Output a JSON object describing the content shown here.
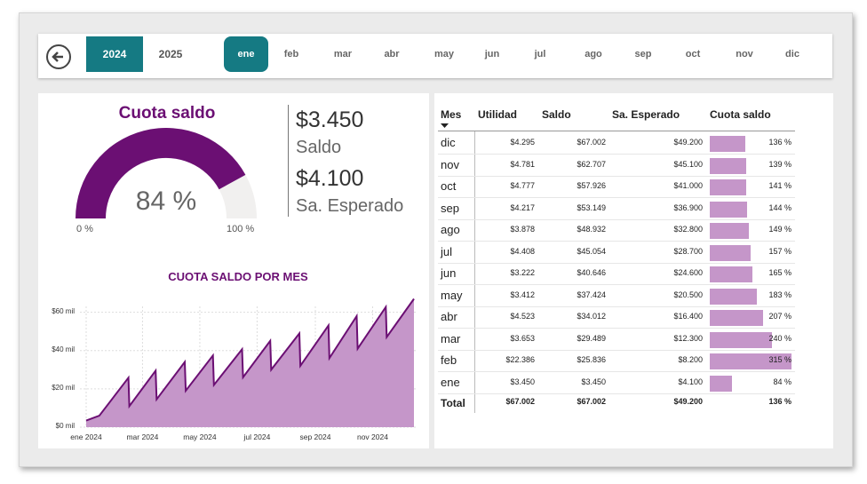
{
  "years": [
    "2024",
    "2025"
  ],
  "selected_year": "2024",
  "months": [
    "ene",
    "feb",
    "mar",
    "abr",
    "may",
    "jun",
    "jul",
    "ago",
    "sep",
    "oct",
    "nov",
    "dic"
  ],
  "selected_month": "ene",
  "gauge": {
    "title": "Cuota saldo",
    "value_label": "84 %",
    "value": 0.84,
    "min_label": "0 %",
    "max_label": "100 %"
  },
  "kpi": {
    "saldo_value": "$3.450",
    "saldo_label": "Saldo",
    "esperado_value": "$4.100",
    "esperado_label": "Sa. Esperado"
  },
  "colors": {
    "accent": "#6b0f73",
    "teal": "#157a83",
    "bar": "#c596c9"
  },
  "table": {
    "headers": [
      "Mes",
      "Utilidad",
      "Saldo",
      "Sa. Esperado",
      "Cuota saldo"
    ],
    "rows": [
      {
        "mes": "dic",
        "utilidad": "$4.295",
        "saldo": "$67.002",
        "esperado": "$49.200",
        "cuota": "136 %",
        "pct": 136
      },
      {
        "mes": "nov",
        "utilidad": "$4.781",
        "saldo": "$62.707",
        "esperado": "$45.100",
        "cuota": "139 %",
        "pct": 139
      },
      {
        "mes": "oct",
        "utilidad": "$4.777",
        "saldo": "$57.926",
        "esperado": "$41.000",
        "cuota": "141 %",
        "pct": 141
      },
      {
        "mes": "sep",
        "utilidad": "$4.217",
        "saldo": "$53.149",
        "esperado": "$36.900",
        "cuota": "144 %",
        "pct": 144
      },
      {
        "mes": "ago",
        "utilidad": "$3.878",
        "saldo": "$48.932",
        "esperado": "$32.800",
        "cuota": "149 %",
        "pct": 149
      },
      {
        "mes": "jul",
        "utilidad": "$4.408",
        "saldo": "$45.054",
        "esperado": "$28.700",
        "cuota": "157 %",
        "pct": 157
      },
      {
        "mes": "jun",
        "utilidad": "$3.222",
        "saldo": "$40.646",
        "esperado": "$24.600",
        "cuota": "165 %",
        "pct": 165
      },
      {
        "mes": "may",
        "utilidad": "$3.412",
        "saldo": "$37.424",
        "esperado": "$20.500",
        "cuota": "183 %",
        "pct": 183
      },
      {
        "mes": "abr",
        "utilidad": "$4.523",
        "saldo": "$34.012",
        "esperado": "$16.400",
        "cuota": "207 %",
        "pct": 207
      },
      {
        "mes": "mar",
        "utilidad": "$3.653",
        "saldo": "$29.489",
        "esperado": "$12.300",
        "cuota": "240 %",
        "pct": 240
      },
      {
        "mes": "feb",
        "utilidad": "$22.386",
        "saldo": "$25.836",
        "esperado": "$8.200",
        "cuota": "315 %",
        "pct": 315
      },
      {
        "mes": "ene",
        "utilidad": "$3.450",
        "saldo": "$3.450",
        "esperado": "$4.100",
        "cuota": "84 %",
        "pct": 84
      }
    ],
    "total": {
      "label": "Total",
      "utilidad": "$67.002",
      "saldo": "$67.002",
      "esperado": "$49.200",
      "cuota": "136 %"
    }
  },
  "chart_data": {
    "type": "area",
    "title": "CUOTA SALDO POR MES",
    "y_ticks": [
      "$0 mil",
      "$20 mil",
      "$40 mil",
      "$60 mil"
    ],
    "x_ticks": [
      "ene 2024",
      "mar 2024",
      "may 2024",
      "jul 2024",
      "sep 2024",
      "nov 2024"
    ],
    "ylim": [
      0,
      70000
    ],
    "series": [
      {
        "values": [
          [
            "2024-01-01",
            3450
          ],
          [
            "2024-01-15",
            6000
          ],
          [
            "2024-02-15",
            25836
          ],
          [
            "2024-02-16",
            11000
          ],
          [
            "2024-03-15",
            29489
          ],
          [
            "2024-03-16",
            14500
          ],
          [
            "2024-04-15",
            34012
          ],
          [
            "2024-04-16",
            19000
          ],
          [
            "2024-05-15",
            37424
          ],
          [
            "2024-05-16",
            22000
          ],
          [
            "2024-06-15",
            40646
          ],
          [
            "2024-06-16",
            26000
          ],
          [
            "2024-07-15",
            45054
          ],
          [
            "2024-07-16",
            30000
          ],
          [
            "2024-08-15",
            48932
          ],
          [
            "2024-08-16",
            32000
          ],
          [
            "2024-09-15",
            53149
          ],
          [
            "2024-09-16",
            36000
          ],
          [
            "2024-10-15",
            57926
          ],
          [
            "2024-10-16",
            41000
          ],
          [
            "2024-11-15",
            62707
          ],
          [
            "2024-11-16",
            47000
          ],
          [
            "2024-12-15",
            67002
          ]
        ]
      }
    ],
    "grid": true
  }
}
